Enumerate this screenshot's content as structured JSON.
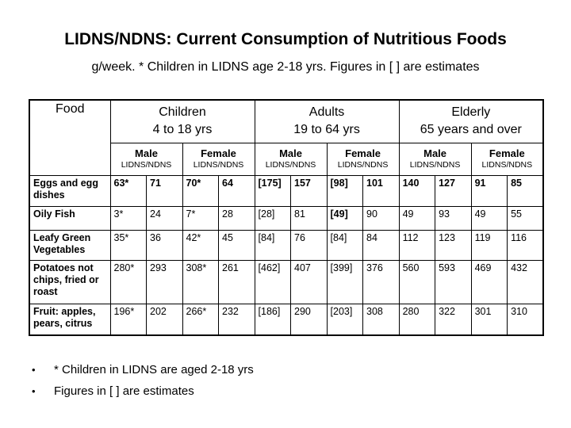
{
  "title": "LIDNS/NDNS: Current Consumption of Nutritious Foods",
  "subtitle": "g/week. * Children in LIDNS age 2-18 yrs. Figures in [ ] are estimates",
  "table": {
    "food_header": "Food",
    "groups": [
      {
        "label": "Children",
        "sublabel": "4 to 18 yrs"
      },
      {
        "label": "Adults",
        "sublabel": "19 to 64 yrs"
      },
      {
        "label": "Elderly",
        "sublabel": "65 years and over"
      }
    ],
    "sex_header": {
      "male": "Male",
      "female": "Female",
      "survey": "LIDNS/NDNS"
    },
    "rows": [
      {
        "food": "Eggs and egg dishes",
        "values": [
          "63*",
          "71",
          "70*",
          "64",
          "[175]",
          "157",
          "[98]",
          "101",
          "140",
          "127",
          "91",
          "85"
        ],
        "bold_cells": [
          0,
          1,
          2,
          3,
          4,
          5,
          6,
          7,
          8,
          9,
          10,
          11
        ]
      },
      {
        "food": "Oily Fish",
        "values": [
          "3*",
          "24",
          "7*",
          "28",
          "[28]",
          "81",
          "[49]",
          "90",
          "49",
          "93",
          "49",
          "55"
        ],
        "bold_cells": [
          6
        ]
      },
      {
        "food": "Leafy Green Vegetables",
        "values": [
          "35*",
          "36",
          "42*",
          "45",
          "[84]",
          "76",
          "[84]",
          "84",
          "112",
          "123",
          "119",
          "116"
        ],
        "bold_cells": []
      },
      {
        "food": "Potatoes not chips, fried or roast",
        "values": [
          "280*",
          "293",
          "308*",
          "261",
          "[462]",
          "407",
          "[399]",
          "376",
          "560",
          "593",
          "469",
          "432"
        ],
        "bold_cells": []
      },
      {
        "food": "Fruit: apples, pears, citrus",
        "values": [
          "196*",
          "202",
          "266*",
          "232",
          "[186]",
          "290",
          "[203]",
          "308",
          "280",
          "322",
          "301",
          "310"
        ],
        "bold_cells": []
      }
    ]
  },
  "footnotes": [
    "* Children in LIDNS are aged 2-18 yrs",
    "Figures in [ ] are estimates"
  ],
  "bullet_glyph": "•",
  "colors": {
    "background": "#ffffff",
    "text": "#000000",
    "border": "#000000"
  }
}
